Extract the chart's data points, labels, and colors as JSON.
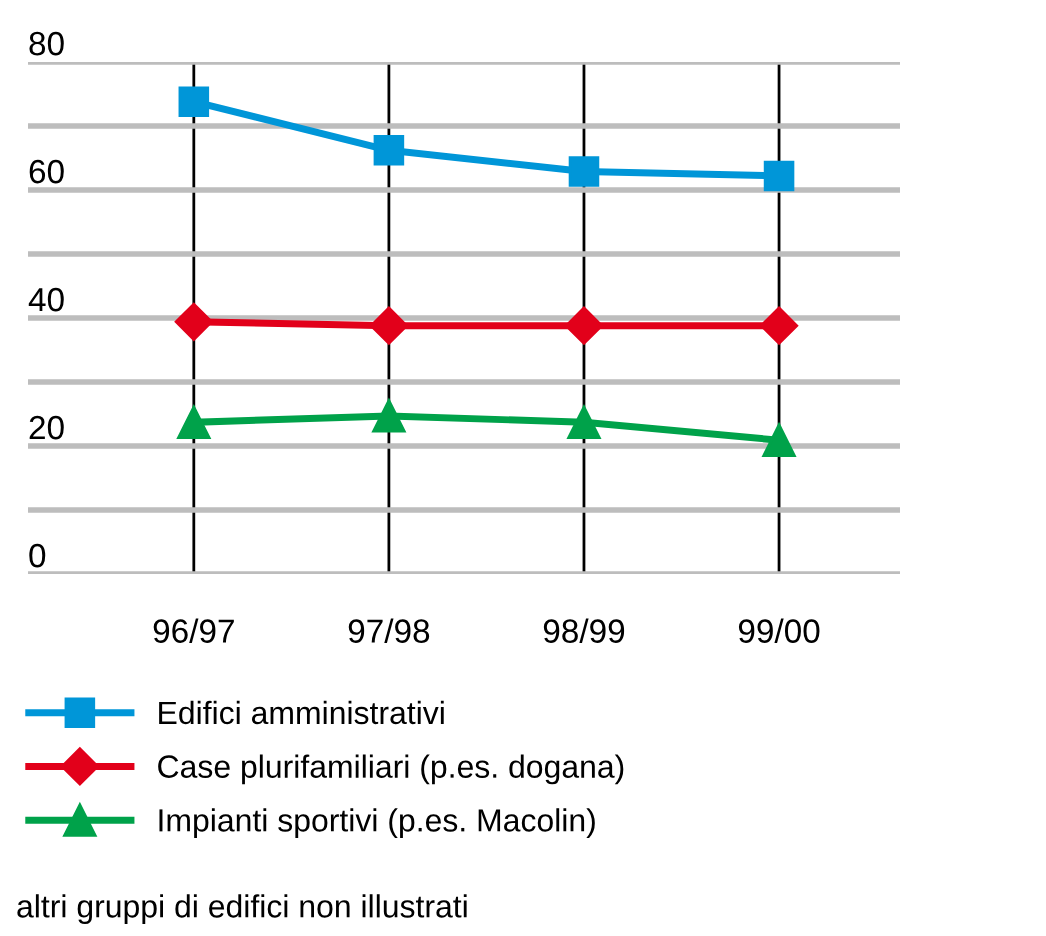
{
  "chart_data": {
    "type": "line",
    "categories": [
      "96/97",
      "97/98",
      "98/99",
      "99/00"
    ],
    "series": [
      {
        "name": "Edifici amministrativi",
        "color": "#0096d8",
        "marker": "square",
        "values": [
          73.8,
          66.2,
          62.9,
          62.2
        ]
      },
      {
        "name": "Case plurifamiliari (p.es. dogana)",
        "color": "#e2001a",
        "marker": "diamond",
        "values": [
          39.4,
          38.8,
          38.8,
          38.8
        ]
      },
      {
        "name": "Impianti sportivi (p.es. Macolin)",
        "color": "#00a24a",
        "marker": "triangle",
        "values": [
          23.7,
          24.7,
          23.7,
          20.9
        ]
      }
    ],
    "ylim": [
      0,
      80
    ],
    "yticks": [
      0,
      {
        "value": 10,
        "label": null
      },
      20,
      {
        "value": 30,
        "label": null
      },
      40,
      {
        "value": 50,
        "label": null
      },
      60,
      {
        "value": 70,
        "label": null
      },
      80
    ],
    "grid": true,
    "legend": "bottom left",
    "line_style": "solid",
    "annotations": [
      "altri gruppi di edifici non illustrati"
    ]
  }
}
